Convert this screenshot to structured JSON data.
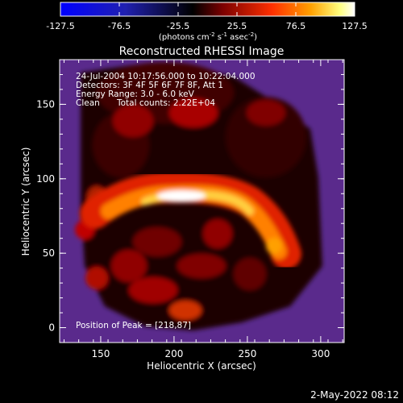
{
  "colorbar": {
    "ticks": [
      "-127.5",
      "-76.5",
      "-25.5",
      "25.5",
      "76.5",
      "127.5"
    ],
    "tick_values": [
      -127.5,
      -76.5,
      -25.5,
      25.5,
      76.5,
      127.5
    ],
    "range": [
      -127.5,
      127.5
    ],
    "unit_label": "(photons cm-2 s-1 asec-2)",
    "colors": [
      "#0000ff",
      "#2020b0",
      "#000000",
      "#7a0000",
      "#ff3000",
      "#ffa000",
      "#ffff80",
      "#ffffff"
    ]
  },
  "info": {
    "time_range": "24-Jul-2004 10:17:56.000 to 10:22:04.000",
    "detectors": "Detectors: 3F 4F 5F 6F 7F 8F, Att 1",
    "energy_range": "Energy Range: 3.0 - 6.0 keV",
    "method": "Clean",
    "total_counts": "Total counts: 2.22E+04",
    "peak": "Position of Peak = [218,87]"
  },
  "footer": {
    "timestamp": "2-May-2022 08:12"
  },
  "chart_data": {
    "type": "heatmap",
    "title": "Reconstructed RHESSI Image",
    "xlabel": "Heliocentric X (arcsec)",
    "ylabel": "Heliocentric Y (arcsec)",
    "xlim": [
      122,
      316
    ],
    "ylim": [
      -10,
      180
    ],
    "xticks": [
      150,
      200,
      250,
      300
    ],
    "yticks": [
      0,
      50,
      100,
      150
    ],
    "peak": [
      218,
      87
    ],
    "grid": false,
    "colorscale": "hot"
  }
}
